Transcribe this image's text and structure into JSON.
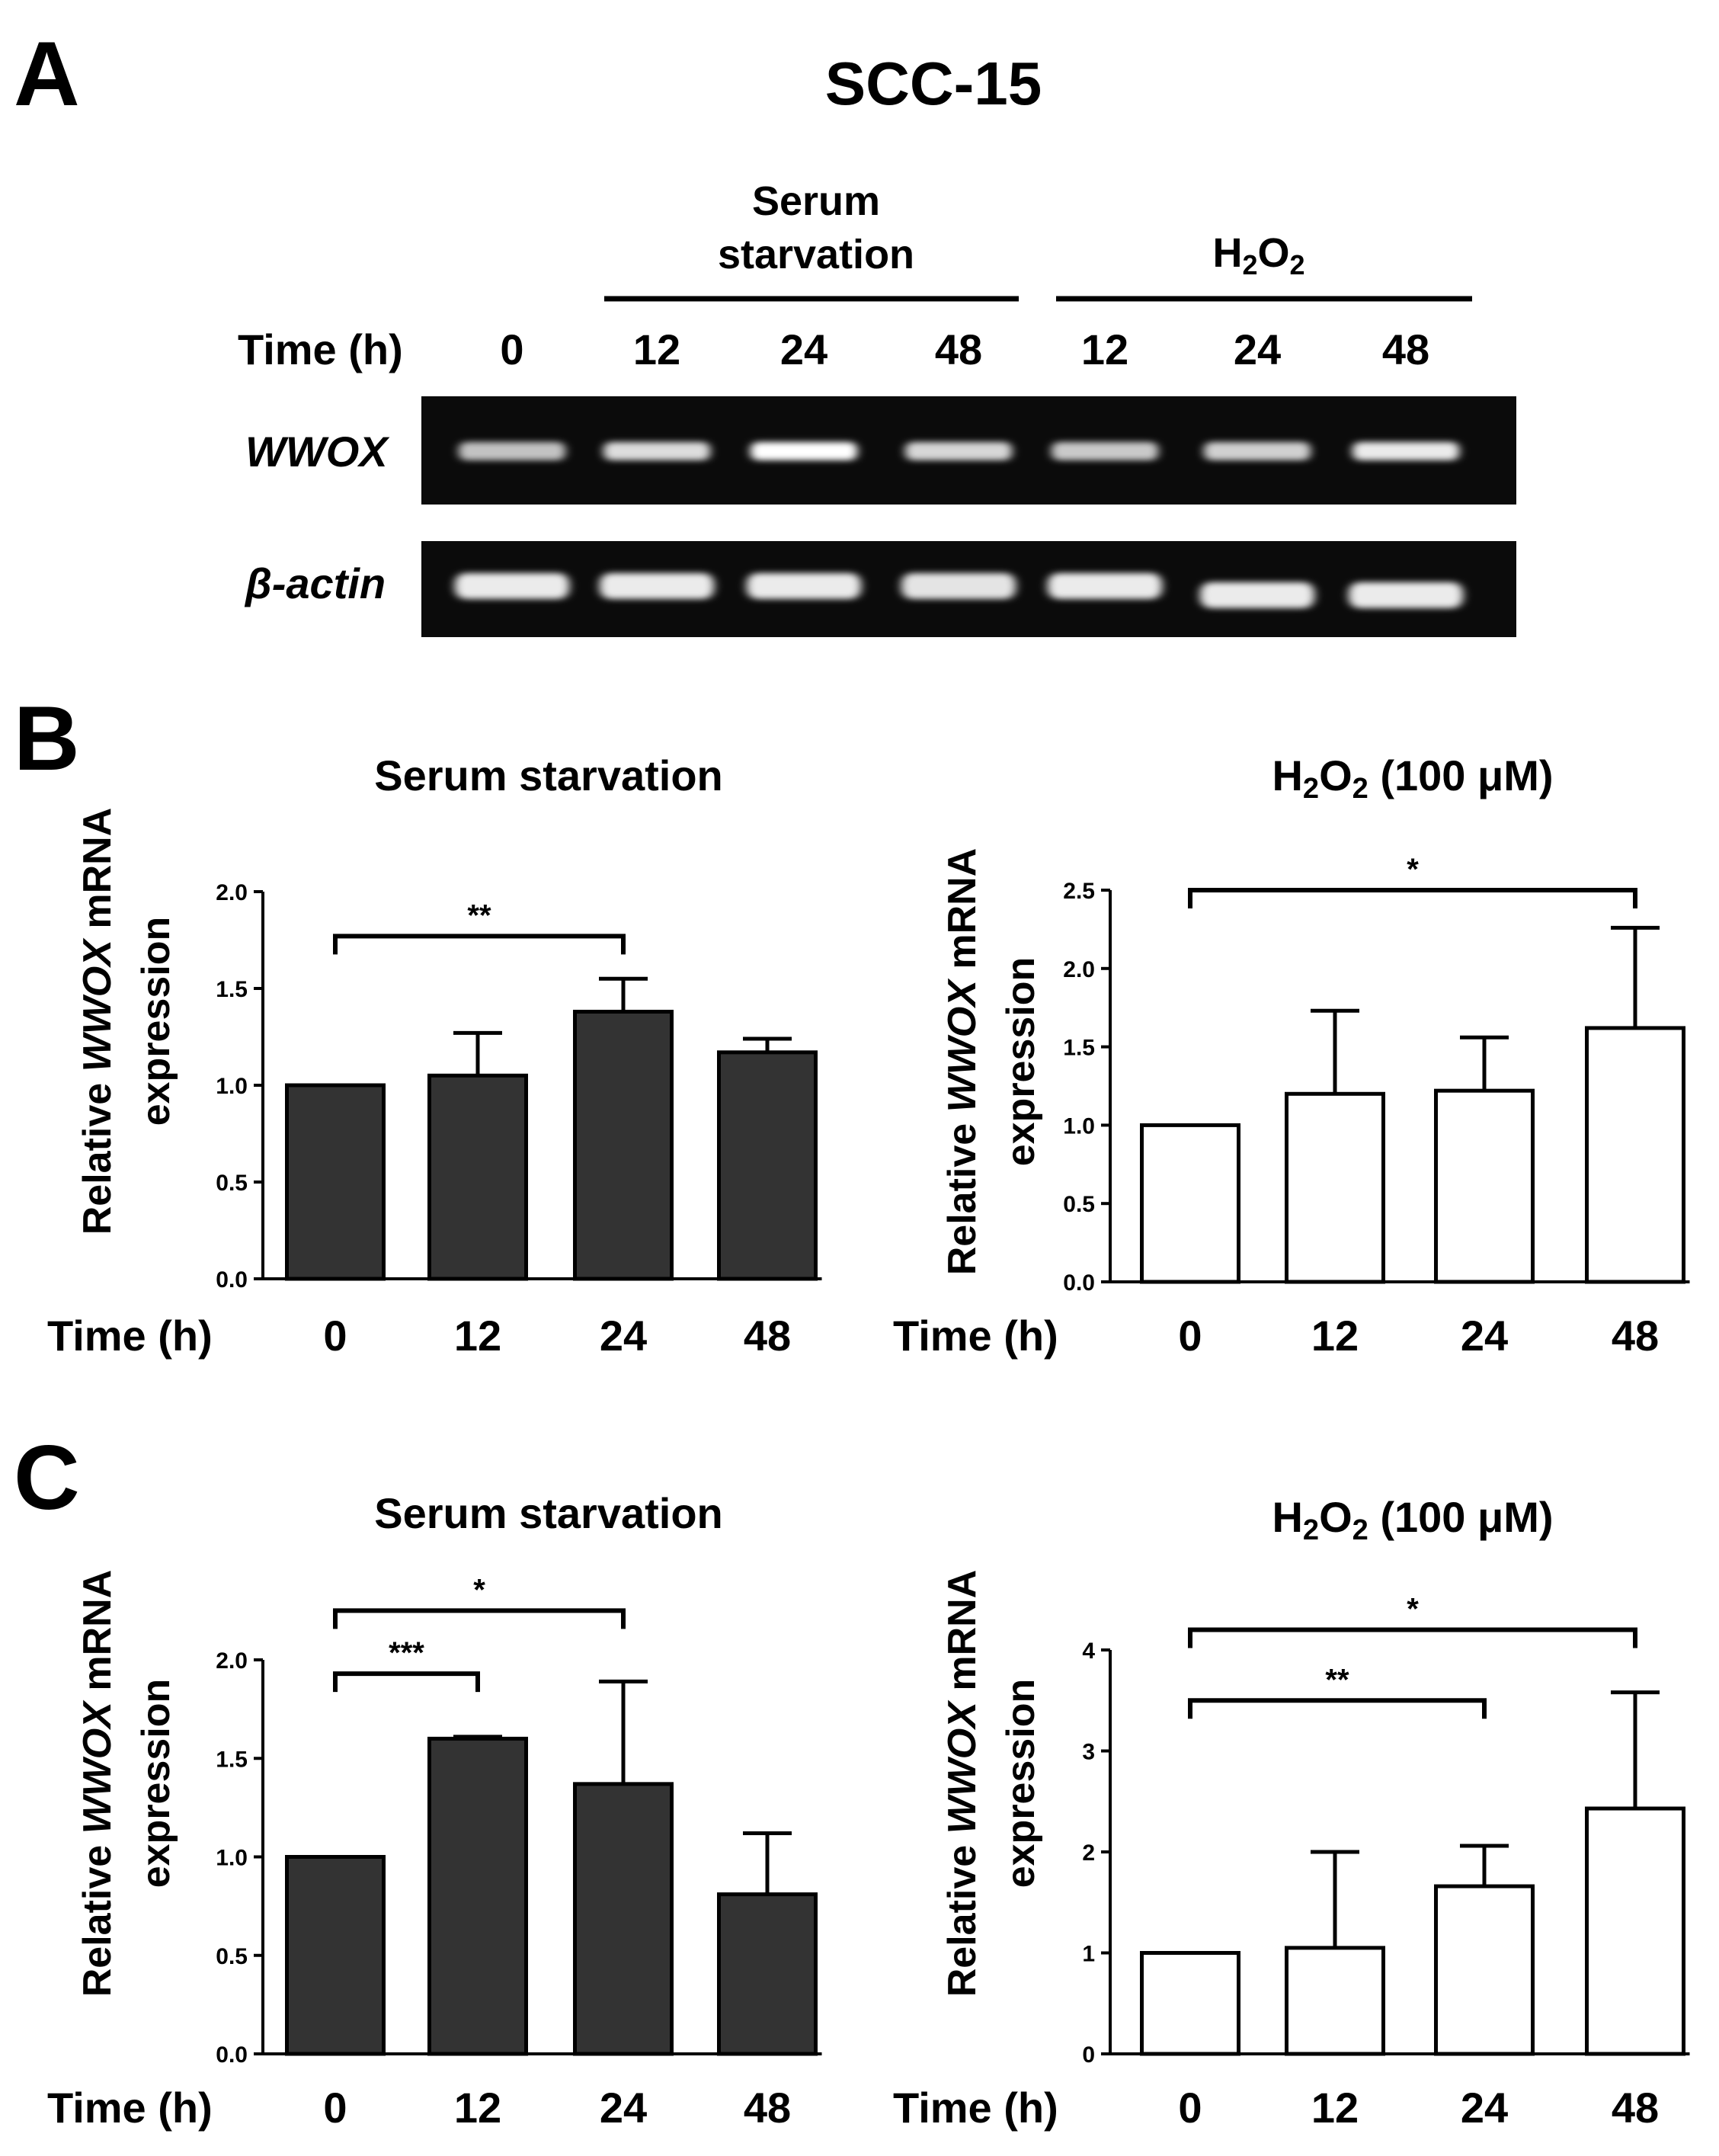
{
  "panel_a": {
    "label": "A",
    "title": "SCC-15",
    "group_serum_line1": "Serum",
    "group_serum_line2": "starvation",
    "group_h2o2_main": "H",
    "group_h2o2_sub1": "2",
    "group_h2o2_mid": "O",
    "group_h2o2_sub2": "2",
    "time_label": "Time (h)",
    "lanes": [
      "0",
      "12",
      "24",
      "48",
      "12",
      "24",
      "48"
    ],
    "gene1": "WWOX",
    "gene2": "β-actin",
    "wwox_band_intensity": [
      0.55,
      0.75,
      1.0,
      0.7,
      0.6,
      0.65,
      0.85
    ],
    "actin_band_intensity": [
      0.85,
      0.85,
      0.85,
      0.8,
      0.85,
      0.85,
      0.85
    ]
  },
  "panel_b": {
    "label": "B"
  },
  "panel_c": {
    "label": "C"
  },
  "chart_data": [
    {
      "id": "B-left",
      "type": "bar",
      "title": "Serum starvation",
      "ylabel_line1": [
        "Relative ",
        "WWOX",
        " mRNA"
      ],
      "ylabel_line2": "expression",
      "xlabel": "Time (h)",
      "categories": [
        "0",
        "12",
        "24",
        "48"
      ],
      "values": [
        1.0,
        1.05,
        1.38,
        1.17
      ],
      "errors": [
        0,
        0.22,
        0.17,
        0.07
      ],
      "ylim": [
        0,
        2.0
      ],
      "yticks": [
        "0.0",
        "0.5",
        "1.0",
        "1.5",
        "2.0"
      ],
      "bar_color": "#333333",
      "brackets": [
        {
          "from": 0,
          "to": 2,
          "label": "**",
          "y": 1.77
        }
      ]
    },
    {
      "id": "B-right",
      "type": "bar",
      "title_main": "H",
      "title_sub1": "2",
      "title_mid": "O",
      "title_sub2": "2",
      "title_tail": " (100 μM)",
      "ylabel_line1": [
        "Relative ",
        "WWOX",
        " mRNA"
      ],
      "ylabel_line2": "expression",
      "xlabel": "Time (h)",
      "categories": [
        "0",
        "12",
        "24",
        "48"
      ],
      "values": [
        1.0,
        1.2,
        1.22,
        1.62
      ],
      "errors": [
        0,
        0.53,
        0.34,
        0.64
      ],
      "ylim": [
        0,
        2.5
      ],
      "yticks": [
        "0.0",
        "0.5",
        "1.0",
        "1.5",
        "2.0",
        "2.5"
      ],
      "bar_color": "#ffffff",
      "brackets": [
        {
          "from": 0,
          "to": 3,
          "label": "*",
          "y": 2.5
        }
      ]
    },
    {
      "id": "C-left",
      "type": "bar",
      "title": "Serum starvation",
      "ylabel_line1": [
        "Relative ",
        "WWOX",
        " mRNA"
      ],
      "ylabel_line2": "expression",
      "xlabel": "Time (h)",
      "categories": [
        "0",
        "12",
        "24",
        "48"
      ],
      "values": [
        1.0,
        1.6,
        1.37,
        0.81
      ],
      "errors": [
        0,
        0.01,
        0.52,
        0.31
      ],
      "ylim": [
        0,
        2.0
      ],
      "yticks": [
        "0.0",
        "0.5",
        "1.0",
        "1.5",
        "2.0"
      ],
      "bar_color": "#333333",
      "brackets": [
        {
          "from": 0,
          "to": 1,
          "label": "***",
          "y": 1.93
        },
        {
          "from": 0,
          "to": 2,
          "label": "*",
          "y": 2.25
        }
      ]
    },
    {
      "id": "C-right",
      "type": "bar",
      "title_main": "H",
      "title_sub1": "2",
      "title_mid": "O",
      "title_sub2": "2",
      "title_tail": " (100 μM)",
      "ylabel_line1": [
        "Relative ",
        "WWOX",
        " mRNA"
      ],
      "ylabel_line2": "expression",
      "xlabel": "Time (h)",
      "categories": [
        "0",
        "12",
        "24",
        "48"
      ],
      "values": [
        1.0,
        1.05,
        1.66,
        2.43
      ],
      "errors": [
        0,
        0.95,
        0.4,
        1.15
      ],
      "ylim": [
        0,
        4
      ],
      "yticks": [
        "0",
        "1",
        "2",
        "3",
        "4"
      ],
      "bar_color": "#ffffff",
      "brackets": [
        {
          "from": 0,
          "to": 2,
          "label": "**",
          "y": 3.5
        },
        {
          "from": 0,
          "to": 3,
          "label": "*",
          "y": 4.2
        }
      ]
    }
  ]
}
